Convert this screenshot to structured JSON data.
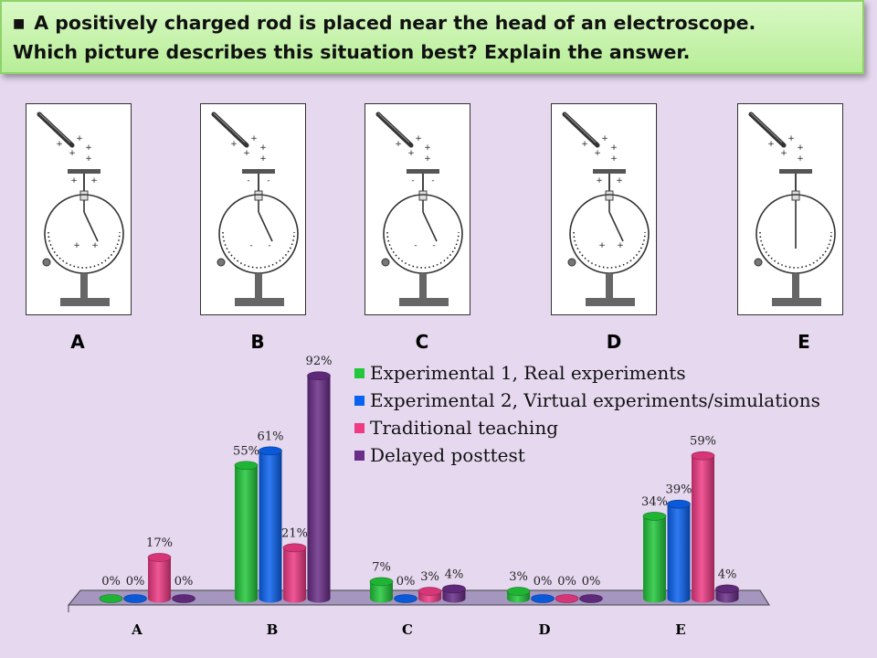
{
  "question": {
    "line1": "A positively charged rod is placed near the head of an electroscope.",
    "line2": "Which picture describes this situation best? Explain the answer."
  },
  "pictures": [
    {
      "label": "A",
      "sign": "+",
      "needle": "deflected"
    },
    {
      "label": "B",
      "sign": "-",
      "needle": "deflected"
    },
    {
      "label": "C",
      "sign": "-",
      "needle": "deflected"
    },
    {
      "label": "D",
      "sign": "+",
      "needle": "deflected"
    },
    {
      "label": "E",
      "sign": "",
      "needle": "vertical"
    }
  ],
  "colors": {
    "background": "#e5d8ef",
    "floor": "#a596c0",
    "series": [
      "#22c83a",
      "#0a63f0",
      "#ee3b84",
      "#6a2d88"
    ]
  },
  "chart_data": {
    "type": "bar",
    "style": "3d-cylinder",
    "categories": [
      "A",
      "B",
      "C",
      "D",
      "E"
    ],
    "series": [
      {
        "name": "Experimental 1, Real experiments",
        "values": [
          0,
          55,
          7,
          3,
          34
        ],
        "labels": [
          "0%",
          "55%",
          "7%",
          "3%",
          "34%"
        ]
      },
      {
        "name": "Experimental 2, Virtual experiments/simulations",
        "values": [
          0,
          61,
          0,
          0,
          39
        ],
        "labels": [
          "0%",
          "61%",
          "0%",
          "0%",
          "39%"
        ]
      },
      {
        "name": "Traditional teaching",
        "values": [
          17,
          21,
          3,
          0,
          59
        ],
        "labels": [
          "17%",
          "21%",
          "3%",
          "0%",
          "59%"
        ]
      },
      {
        "name": "Delayed posttest",
        "values": [
          0,
          92,
          4,
          0,
          4
        ],
        "labels": [
          "0%",
          "92%",
          "4%",
          "0%",
          "4%"
        ]
      }
    ],
    "ylim": [
      0,
      100
    ],
    "grid": false,
    "legend": "top-right"
  }
}
